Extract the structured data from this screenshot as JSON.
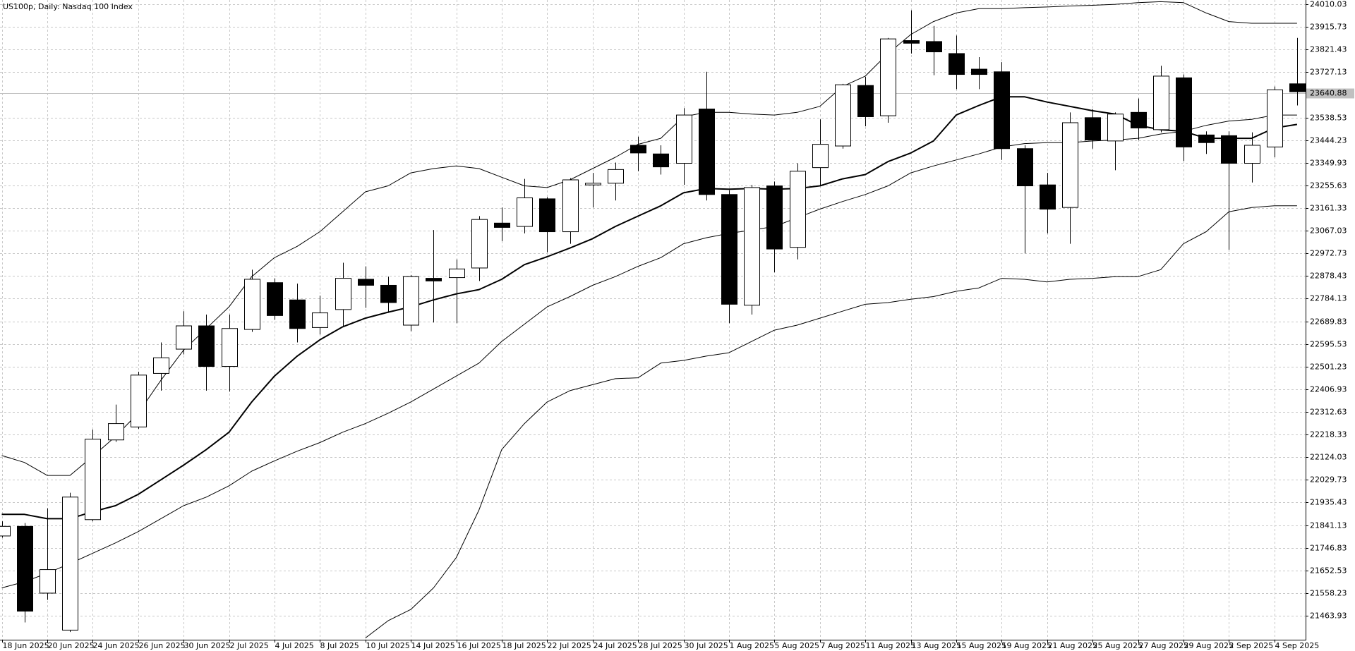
{
  "chart_data": {
    "type": "candlestick",
    "title": "US100p, Daily:  Nasdaq 100 Index",
    "categories": [
      "18 Jun 2025",
      null,
      "20 Jun 2025",
      null,
      "24 Jun 2025",
      null,
      "26 Jun 2025",
      null,
      "30 Jun 2025",
      null,
      "2 Jul 2025",
      null,
      "4 Jul 2025",
      null,
      "8 Jul 2025",
      null,
      "10 Jul 2025",
      null,
      "14 Jul 2025",
      null,
      "16 Jul 2025",
      null,
      "18 Jul 2025",
      null,
      "22 Jul 2025",
      null,
      "24 Jul 2025",
      null,
      "28 Jul 2025",
      null,
      "30 Jul 2025",
      null,
      "1 Aug 2025",
      null,
      "5 Aug 2025",
      null,
      "7 Aug 2025",
      null,
      "11 Aug 2025",
      null,
      "13 Aug 2025",
      null,
      "15 Aug 2025",
      null,
      "19 Aug 2025",
      null,
      "21 Aug 2025",
      null,
      "25 Aug 2025",
      null,
      "27 Aug 2025",
      null,
      "29 Aug 2025",
      null,
      "2 Sep 2025",
      null,
      "4 Sep 2025",
      null
    ],
    "open": [
      21796,
      21836,
      21558,
      21404,
      21864,
      22196,
      22250,
      22473,
      22574,
      22671,
      22502,
      22656,
      22851,
      22779,
      22664,
      22739,
      22865,
      22840,
      22674,
      22869,
      22872,
      22912,
      23099,
      23085,
      23200,
      23063,
      23258,
      23265,
      23423,
      23387,
      23348,
      23574,
      23218,
      22757,
      23254,
      22998,
      23330,
      23420,
      23672,
      23546,
      23859,
      23855,
      23805,
      23740,
      23729,
      23409,
      23258,
      23164,
      23538,
      23441,
      23560,
      23488,
      23704,
      23466,
      23463,
      23348,
      23416,
      23679
    ],
    "high": [
      21857,
      21850,
      21911,
      21976,
      22239,
      22343,
      22480,
      22602,
      22732,
      22718,
      22718,
      22905,
      22869,
      22847,
      22797,
      22934,
      22919,
      22876,
      22883,
      23070,
      22948,
      23128,
      23164,
      23283,
      23207,
      23286,
      23308,
      23351,
      23459,
      23423,
      23578,
      23729,
      23236,
      23258,
      23272,
      23348,
      23531,
      23679,
      23708,
      23870,
      23985,
      23920,
      23880,
      23790,
      23769,
      23423,
      23308,
      23560,
      23574,
      23560,
      23618,
      23754,
      23718,
      23481,
      23481,
      23477,
      23668,
      23870
    ],
    "low": [
      21789,
      21436,
      21530,
      21396,
      21857,
      22188,
      22242,
      22401,
      22552,
      22401,
      22397,
      22646,
      22696,
      22602,
      22635,
      22671,
      22746,
      22725,
      22649,
      22685,
      22682,
      22858,
      23024,
      23056,
      22977,
      23013,
      23164,
      23193,
      23315,
      23301,
      23258,
      23193,
      22682,
      22718,
      22894,
      22948,
      23254,
      23409,
      23502,
      23517,
      23805,
      23715,
      23657,
      23657,
      23362,
      22973,
      23056,
      23013,
      23409,
      23319,
      23445,
      23477,
      23358,
      23387,
      22988,
      23268,
      23373,
      23589
    ],
    "close": [
      21836,
      21483,
      21656,
      21958,
      22199,
      22264,
      22466,
      22538,
      22671,
      22502,
      22660,
      22865,
      22714,
      22660,
      22725,
      22869,
      22840,
      22768,
      22876,
      22858,
      22908,
      23114,
      23081,
      23204,
      23063,
      23279,
      23265,
      23322,
      23391,
      23333,
      23549,
      23218,
      22761,
      23247,
      22991,
      23315,
      23427,
      23675,
      23542,
      23866,
      23848,
      23812,
      23718,
      23718,
      23409,
      23254,
      23157,
      23517,
      23445,
      23553,
      23495,
      23711,
      23416,
      23434,
      23348,
      23423,
      23654,
      23646
    ],
    "body_colors": {
      "up": "#ffffff",
      "down": "#000000",
      "outline": "#000000"
    },
    "overlays": [
      {
        "color": "#000000",
        "line_width": 1,
        "values": [
          22131,
          22102,
          22048,
          22048,
          22127,
          22210,
          22307,
          22444,
          22570,
          22660,
          22750,
          22876,
          22955,
          23002,
          23063,
          23146,
          23229,
          23254,
          23308,
          23326,
          23337,
          23326,
          23290,
          23254,
          23247,
          23279,
          23326,
          23373,
          23427,
          23452,
          23542,
          23560,
          23560,
          23553,
          23549,
          23560,
          23585,
          23668,
          23711,
          23805,
          23884,
          23938,
          23974,
          23992,
          23992,
          23996,
          23999,
          24003,
          24006,
          24010,
          24017,
          24021,
          24017,
          23974,
          23938,
          23931,
          23931,
          23931
        ]
      },
      {
        "color": "#000000",
        "line_width": 2,
        "values": [
          21886,
          21886,
          21868,
          21868,
          21897,
          21922,
          21969,
          22030,
          22091,
          22156,
          22228,
          22354,
          22462,
          22545,
          22613,
          22667,
          22703,
          22728,
          22750,
          22779,
          22804,
          22822,
          22865,
          22926,
          22959,
          22995,
          23034,
          23085,
          23128,
          23171,
          23225,
          23243,
          23240,
          23243,
          23240,
          23243,
          23254,
          23283,
          23301,
          23355,
          23391,
          23441,
          23549,
          23589,
          23625,
          23625,
          23603,
          23585,
          23567,
          23553,
          23506,
          23488,
          23481,
          23452,
          23452,
          23452,
          23495,
          23510
        ]
      },
      {
        "color": "#000000",
        "line_width": 1,
        "values": [
          21580,
          21605,
          21641,
          21681,
          21724,
          21767,
          21814,
          21868,
          21922,
          21958,
          22005,
          22066,
          22109,
          22149,
          22185,
          22228,
          22264,
          22307,
          22354,
          22408,
          22462,
          22516,
          22606,
          22678,
          22750,
          22793,
          22840,
          22876,
          22919,
          22955,
          23013,
          23038,
          23056,
          23070,
          23085,
          23121,
          23157,
          23189,
          23218,
          23254,
          23308,
          23337,
          23362,
          23387,
          23416,
          23430,
          23434,
          23434,
          23441,
          23445,
          23452,
          23470,
          23481,
          23506,
          23524,
          23531,
          23549,
          23549
        ]
      },
      {
        "color": "#000000",
        "line_width": 1,
        "values": [
          null,
          null,
          null,
          null,
          null,
          null,
          null,
          null,
          null,
          null,
          null,
          null,
          null,
          null,
          null,
          null,
          21371,
          21443,
          21490,
          21580,
          21706,
          21904,
          22156,
          22264,
          22354,
          22401,
          22426,
          22451,
          22455,
          22516,
          22527,
          22545,
          22559,
          22606,
          22653,
          22674,
          22703,
          22732,
          22761,
          22768,
          22782,
          22793,
          22815,
          22829,
          22869,
          22865,
          22854,
          22865,
          22869,
          22876,
          22876,
          22905,
          23013,
          23063,
          23146,
          23164,
          23171,
          23171
        ]
      }
    ],
    "ylim": [
      21364,
      24028
    ],
    "yticks": [
      21463.93,
      21558.23,
      21652.53,
      21746.83,
      21841.13,
      21935.43,
      22029.73,
      22124.03,
      22218.33,
      22312.63,
      22406.93,
      22501.23,
      22595.53,
      22689.83,
      22784.13,
      22878.43,
      22972.73,
      23067.03,
      23161.33,
      23255.63,
      23349.93,
      23444.23,
      23538.53,
      23727.13,
      23821.43,
      23915.73,
      24010.03
    ],
    "grid": true,
    "current_price": 23640.88,
    "current_price_color": "#c0c0c0"
  }
}
